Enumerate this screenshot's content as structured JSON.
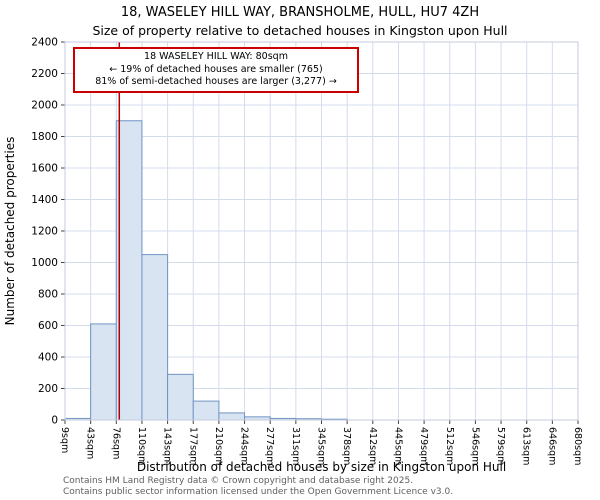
{
  "title": {
    "line1": "18, WASELEY HILL WAY, BRANSHOLME, HULL, HU7 4ZH",
    "line2": "Size of property relative to detached houses in Kingston upon Hull"
  },
  "annotation": {
    "line1": "18 WASELEY HILL WAY: 80sqm",
    "line2": "← 19% of detached houses are smaller (765)",
    "line3": "81% of semi-detached houses are larger (3,277) →"
  },
  "chart_data": {
    "type": "bar",
    "title": "18, WASELEY HILL WAY, BRANSHOLME, HULL, HU7 4ZH — Size of property relative to detached houses in Kingston upon Hull",
    "xlabel": "Distribution of detached houses by size in Kingston upon Hull",
    "ylabel": "Number of detached properties",
    "categories": [
      "9sqm",
      "43sqm",
      "76sqm",
      "110sqm",
      "143sqm",
      "177sqm",
      "210sqm",
      "244sqm",
      "277sqm",
      "311sqm",
      "345sqm",
      "378sqm",
      "412sqm",
      "445sqm",
      "479sqm",
      "512sqm",
      "546sqm",
      "579sqm",
      "613sqm",
      "646sqm",
      "680sqm"
    ],
    "values": [
      10,
      610,
      1900,
      1050,
      290,
      120,
      45,
      20,
      10,
      8,
      5,
      0,
      0,
      0,
      0,
      0,
      0,
      0,
      0,
      0
    ],
    "ylim": [
      0,
      2400
    ],
    "ytick_step": 200,
    "marker_value_sqm": 80,
    "x_range_sqm": [
      9,
      680
    ],
    "grid": true,
    "legend": "none",
    "colors": {
      "bar_fill": "#d9e4f3",
      "bar_stroke": "#6f94c4",
      "marker_line": "#b30000",
      "grid": "#d4dcec",
      "plot_border": "#c5cbdb",
      "annotation_border": "#cc0000"
    }
  },
  "footer": {
    "line1": "Contains HM Land Registry data © Crown copyright and database right 2025.",
    "line2": "Contains public sector information licensed under the Open Government Licence v3.0."
  }
}
